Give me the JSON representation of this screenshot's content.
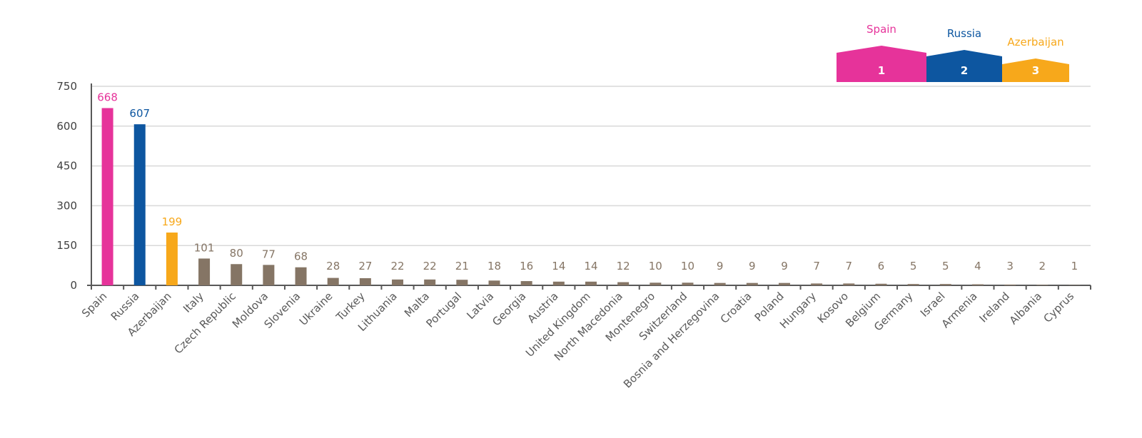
{
  "chart_data": {
    "type": "bar",
    "categories": [
      "Spain",
      "Russia",
      "Azerbaijan",
      "Italy",
      "Czech Republic",
      "Moldova",
      "Slovenia",
      "Ukraine",
      "Turkey",
      "Lithuania",
      "Malta",
      "Portugal",
      "Latvia",
      "Georgia",
      "Austria",
      "United Kingdom",
      "North Macedonia",
      "Montenegro",
      "Switzerland",
      "Bosnia and Herzegovina",
      "Croatia",
      "Poland",
      "Hungary",
      "Kosovo",
      "Belgium",
      "Germany",
      "Israel",
      "Armenia",
      "Ireland",
      "Albania",
      "Cyprus"
    ],
    "values": [
      668,
      607,
      199,
      101,
      80,
      77,
      68,
      28,
      27,
      22,
      22,
      21,
      18,
      16,
      14,
      14,
      12,
      10,
      10,
      9,
      9,
      9,
      7,
      7,
      6,
      5,
      5,
      4,
      3,
      2,
      1
    ],
    "colors": [
      "#e6339a",
      "#0d56a0",
      "#f7a81b",
      "#857565",
      "#857565",
      "#857565",
      "#857565",
      "#857565",
      "#857565",
      "#857565",
      "#857565",
      "#857565",
      "#857565",
      "#857565",
      "#857565",
      "#857565",
      "#857565",
      "#857565",
      "#857565",
      "#857565",
      "#857565",
      "#857565",
      "#857565",
      "#857565",
      "#857565",
      "#857565",
      "#857565",
      "#857565",
      "#857565",
      "#857565",
      "#857565"
    ],
    "ylim": [
      0,
      750
    ],
    "yticks": [
      0,
      150,
      300,
      450,
      600,
      750
    ],
    "grid": true,
    "podium": [
      {
        "name": "Spain",
        "rank": 1,
        "color": "#e6339a"
      },
      {
        "name": "Russia",
        "rank": 2,
        "color": "#0d56a0"
      },
      {
        "name": "Azerbaijan",
        "rank": 3,
        "color": "#f7a81b"
      }
    ]
  }
}
